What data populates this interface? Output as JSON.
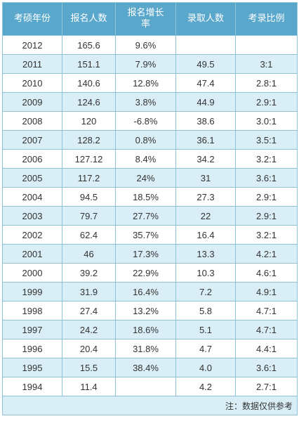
{
  "table": {
    "headers": [
      "考硕年份",
      "报名人数",
      "报名增长率",
      "录取人数",
      "考录比例"
    ],
    "rows": [
      [
        "2012",
        "165.6",
        "9.6%",
        "",
        ""
      ],
      [
        "2011",
        "151.1",
        "7.9%",
        "49.5",
        "3:1"
      ],
      [
        "2010",
        "140.6",
        "12.8%",
        "47.4",
        "2.8:1"
      ],
      [
        "2009",
        "124.6",
        "3.8%",
        "44.9",
        "2.9:1"
      ],
      [
        "2008",
        "120",
        "-6.8%",
        "38.6",
        "3.0:1"
      ],
      [
        "2007",
        "128.2",
        "0.8%",
        "36.1",
        "3.5:1"
      ],
      [
        "2006",
        "127.12",
        "8.4%",
        "34.2",
        "3.2:1"
      ],
      [
        "2005",
        "117.2",
        "24%",
        "31",
        "3.6:1"
      ],
      [
        "2004",
        "94.5",
        "18.5%",
        "27.3",
        "2.9:1"
      ],
      [
        "2003",
        "79.7",
        "27.7%",
        "22",
        "2.9:1"
      ],
      [
        "2002",
        "62.4",
        "35.7%",
        "16.4",
        "3.2:1"
      ],
      [
        "2001",
        "46",
        "17.3%",
        "13.3",
        "4.2:1"
      ],
      [
        "2000",
        "39.2",
        "22.9%",
        "10.3",
        "4.6:1"
      ],
      [
        "1999",
        "31.9",
        "16.4%",
        "7.2",
        "4.9:1"
      ],
      [
        "1998",
        "27.4",
        "13.2%",
        "5.8",
        "4.7:1"
      ],
      [
        "1997",
        "24.2",
        "18.6%",
        "5.1",
        "4.7:1"
      ],
      [
        "1996",
        "20.4",
        "31.8%",
        "4.7",
        "4.4:1"
      ],
      [
        "1995",
        "15.5",
        "38.4%",
        "4.0",
        "3.6:1"
      ],
      [
        "1994",
        "11.4",
        "",
        "4.2",
        "2.7:1"
      ]
    ],
    "note": "注：数据仅供参考"
  },
  "colors": {
    "header_bg": "#5aa7cc",
    "row_alt_bg": "#d9eef6",
    "border": "#8ec3d5"
  }
}
